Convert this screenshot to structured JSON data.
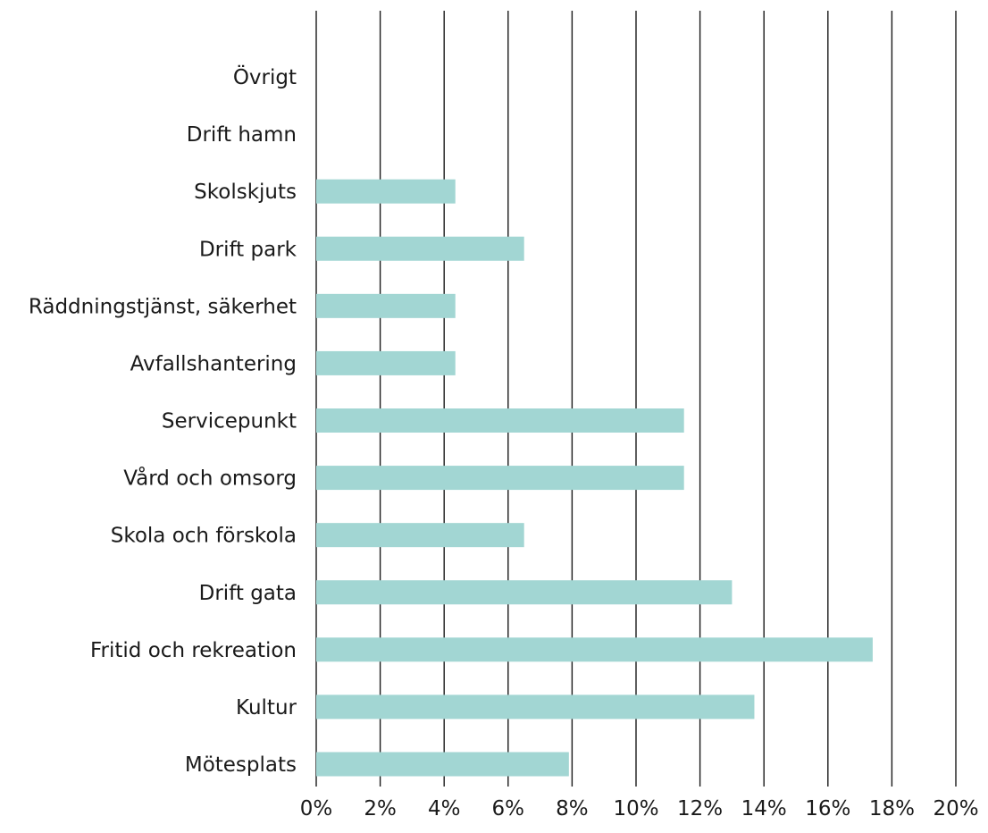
{
  "chart_data": {
    "type": "bar",
    "orientation": "horizontal",
    "categories": [
      "Övrigt",
      "Drift hamn",
      "Skolskjuts",
      "Drift park",
      "Räddningstjänst, säkerhet",
      "Avfallshantering",
      "Servicepunkt",
      "Vård och omsorg",
      "Skola och förskola",
      "Drift gata",
      "Fritid och rekreation",
      "Kultur",
      "Mötesplats"
    ],
    "values": [
      0,
      0,
      4.35,
      6.5,
      4.35,
      4.35,
      11.5,
      11.5,
      6.5,
      13.0,
      17.4,
      13.7,
      7.9
    ],
    "xlim": [
      0,
      20
    ],
    "x_ticks": [
      0,
      2,
      4,
      6,
      8,
      10,
      12,
      14,
      16,
      18,
      20
    ],
    "x_tick_suffix": "%",
    "grid": "vertical",
    "bar_color": "#a2d6d3",
    "grid_color": "#1a1a1a",
    "title": "",
    "xlabel": "",
    "ylabel": ""
  }
}
